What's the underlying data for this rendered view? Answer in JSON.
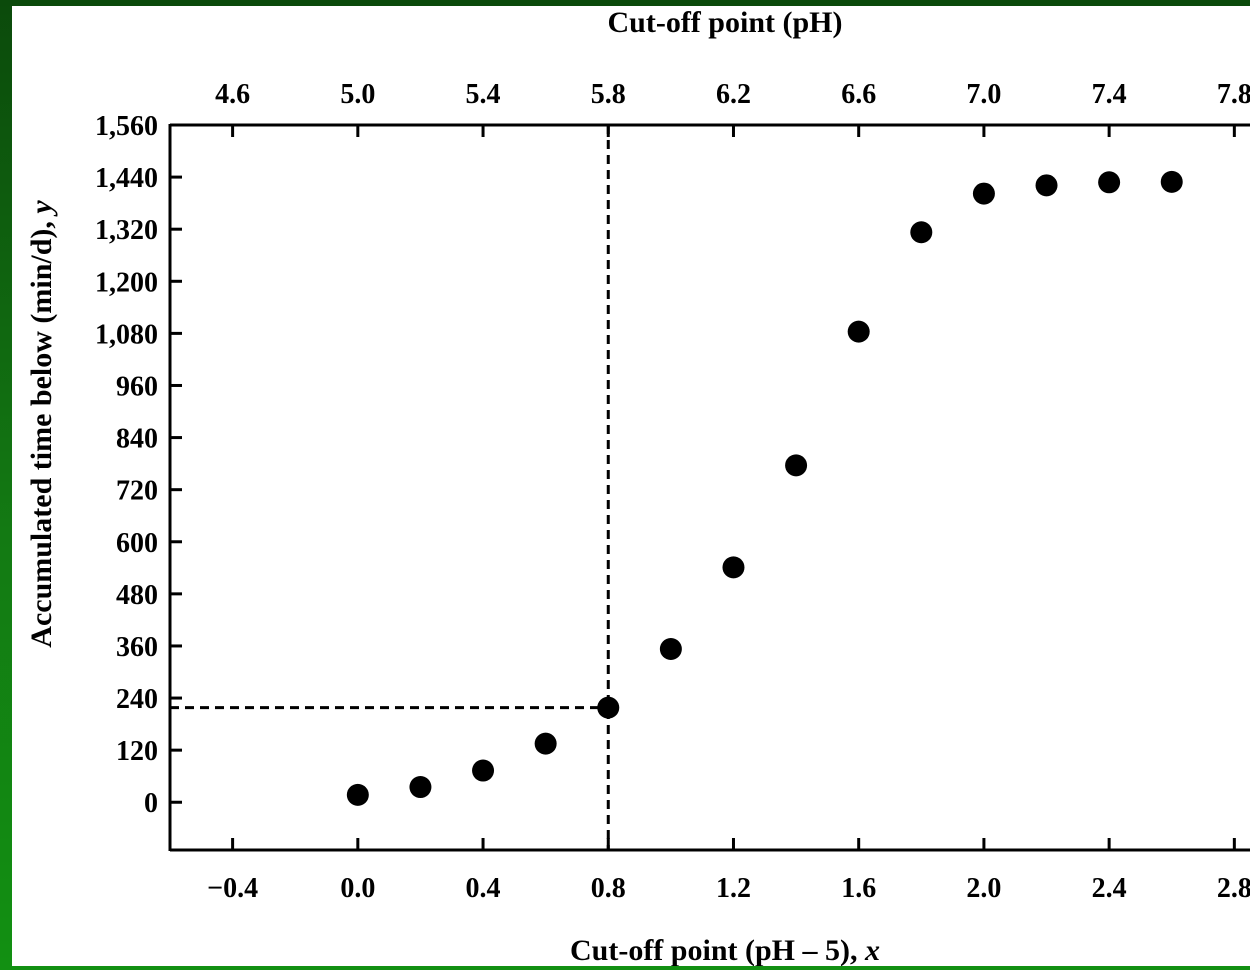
{
  "chart_data": {
    "type": "scatter",
    "top_axis_title": "Cut-off point (pH)",
    "x_axis_title_prefix": "Cut-off point (pH – 5), ",
    "x_axis_title_var": "x",
    "y_axis_title_prefix": "Accumulated time below (min/d), ",
    "y_axis_title_var": "y",
    "xlim": [
      -0.6,
      2.85
    ],
    "ylim": [
      -110,
      1560
    ],
    "x_ticks": [
      {
        "value": -0.4,
        "label": "−0.4"
      },
      {
        "value": 0.0,
        "label": "0.0"
      },
      {
        "value": 0.4,
        "label": "0.4"
      },
      {
        "value": 0.8,
        "label": "0.8"
      },
      {
        "value": 1.2,
        "label": "1.2"
      },
      {
        "value": 1.6,
        "label": "1.6"
      },
      {
        "value": 2.0,
        "label": "2.0"
      },
      {
        "value": 2.4,
        "label": "2.4"
      },
      {
        "value": 2.8,
        "label": "2.8"
      }
    ],
    "top_ticks": [
      {
        "value": 4.6,
        "label": "4.6"
      },
      {
        "value": 5.0,
        "label": "5.0"
      },
      {
        "value": 5.4,
        "label": "5.4"
      },
      {
        "value": 5.8,
        "label": "5.8"
      },
      {
        "value": 6.2,
        "label": "6.2"
      },
      {
        "value": 6.6,
        "label": "6.6"
      },
      {
        "value": 7.0,
        "label": "7.0"
      },
      {
        "value": 7.4,
        "label": "7.4"
      },
      {
        "value": 7.8,
        "label": "7.8"
      }
    ],
    "y_ticks": [
      {
        "value": 0,
        "label": "0"
      },
      {
        "value": 120,
        "label": "120"
      },
      {
        "value": 240,
        "label": "240"
      },
      {
        "value": 360,
        "label": "360"
      },
      {
        "value": 480,
        "label": "480"
      },
      {
        "value": 600,
        "label": "600"
      },
      {
        "value": 720,
        "label": "720"
      },
      {
        "value": 840,
        "label": "840"
      },
      {
        "value": 960,
        "label": "960"
      },
      {
        "value": 1080,
        "label": "1,080"
      },
      {
        "value": 1200,
        "label": "1,200"
      },
      {
        "value": 1320,
        "label": "1,320"
      },
      {
        "value": 1440,
        "label": "1,440"
      },
      {
        "value": 1560,
        "label": "1,560"
      }
    ],
    "points": [
      {
        "x": 0.0,
        "y": 17
      },
      {
        "x": 0.2,
        "y": 35
      },
      {
        "x": 0.4,
        "y": 73
      },
      {
        "x": 0.6,
        "y": 135
      },
      {
        "x": 0.8,
        "y": 218
      },
      {
        "x": 1.0,
        "y": 353
      },
      {
        "x": 1.2,
        "y": 541
      },
      {
        "x": 1.4,
        "y": 776
      },
      {
        "x": 1.6,
        "y": 1084
      },
      {
        "x": 1.8,
        "y": 1313
      },
      {
        "x": 2.0,
        "y": 1402
      },
      {
        "x": 2.2,
        "y": 1421
      },
      {
        "x": 2.4,
        "y": 1428
      },
      {
        "x": 2.6,
        "y": 1429
      }
    ],
    "reference_lines": {
      "x": 0.8,
      "y": 218
    },
    "grid": false,
    "marker_color": "#000000"
  }
}
